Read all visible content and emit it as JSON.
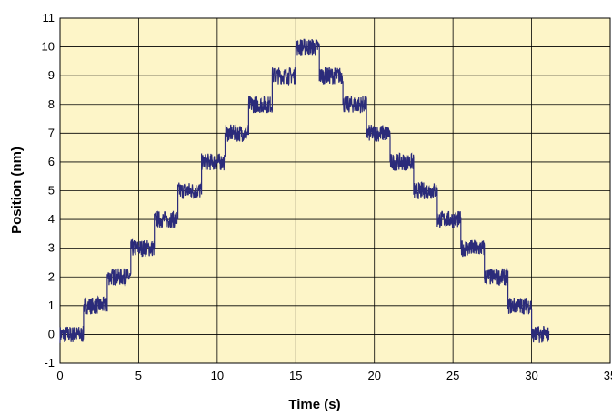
{
  "chart_data": {
    "type": "line",
    "title": "",
    "xlabel": "Time (s)",
    "ylabel": "Position (nm)",
    "xlim": [
      0,
      35
    ],
    "ylim": [
      -1,
      11
    ],
    "xticks": [
      0,
      5,
      10,
      15,
      20,
      25,
      30,
      35
    ],
    "xtick_labels": [
      "0",
      "5",
      "10",
      "15",
      "20",
      "25",
      "30",
      "35"
    ],
    "yticks": [
      -1,
      0,
      1,
      2,
      3,
      4,
      5,
      6,
      7,
      8,
      9,
      10,
      11
    ],
    "ytick_labels": [
      "-1",
      "0",
      "1",
      "2",
      "3",
      "4",
      "5",
      "6",
      "7",
      "8",
      "9",
      "10",
      "11"
    ],
    "grid": true,
    "legend": "none",
    "colors": {
      "plot_background": "#fdf5c8",
      "series": "#2b2b7a",
      "grid": "#000000"
    },
    "series": [
      {
        "x": [
          0,
          1.5,
          1.5,
          3.0,
          3.0,
          4.5,
          4.5,
          6.0,
          6.0,
          7.5,
          7.5,
          9.0,
          9.0,
          10.5,
          10.5,
          12.0,
          12.0,
          13.5,
          13.5,
          15.0,
          15.0,
          16.5,
          16.5,
          18.0,
          18.0,
          19.5,
          19.5,
          21.0,
          21.0,
          22.5,
          22.5,
          24.0,
          24.0,
          25.5,
          25.5,
          27.0,
          27.0,
          28.5,
          28.5,
          30.0,
          30.0,
          31.1
        ],
        "y": [
          0,
          0,
          1,
          1,
          2,
          2,
          3,
          3,
          4,
          4,
          5,
          5,
          6,
          6,
          7,
          7,
          8,
          8,
          9,
          9,
          10,
          10,
          9,
          9,
          8,
          8,
          7,
          7,
          6,
          6,
          5,
          5,
          4,
          4,
          3,
          3,
          2,
          2,
          1,
          1,
          0,
          0
        ]
      }
    ]
  }
}
